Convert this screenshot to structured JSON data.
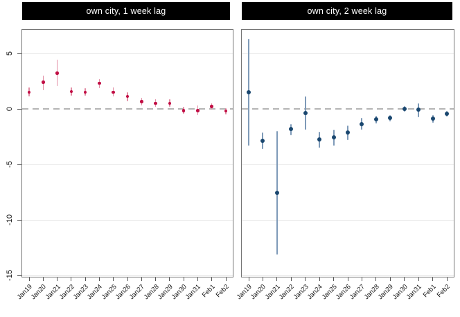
{
  "figure": {
    "background": "#ffffff",
    "panel_border_color": "#757575",
    "grid_color": "#e8e8e8",
    "zero_line_color": "#b4b4b4",
    "tick_color": "#555555",
    "tick_label_color": "#121212",
    "title_bar_bg": "#000000",
    "title_bar_fg": "#ffffff"
  },
  "chart_data": [
    {
      "type": "scatter",
      "title": "own city, 1 week lag",
      "xlabel": "",
      "ylabel": "",
      "x": [
        "Jan19",
        "Jan20",
        "Jan21",
        "Jan22",
        "Jan23",
        "Jan24",
        "Jan25",
        "Jan26",
        "Jan27",
        "Jan28",
        "Jan29",
        "Jan30",
        "Jan31",
        "Feb1",
        "Feb2"
      ],
      "yticks_labels": [
        "5",
        "0",
        "-5",
        "-10",
        "-15"
      ],
      "yticks_values": [
        5,
        0,
        -5,
        -10,
        -15
      ],
      "ylim": [
        -15.1,
        7.1
      ],
      "grid": "on",
      "legend": "none",
      "zero_reference_line": true,
      "marker_color": "#c10e44",
      "ci_color": "#e28da4",
      "series": [
        {
          "name": "coefficient estimate",
          "values": [
            1.5,
            2.4,
            3.2,
            1.55,
            1.5,
            2.3,
            1.5,
            1.1,
            0.65,
            0.5,
            0.5,
            -0.15,
            -0.15,
            0.2,
            -0.2
          ],
          "ci_high": [
            1.9,
            3.0,
            4.4,
            1.9,
            1.85,
            2.7,
            1.9,
            1.5,
            1.0,
            0.85,
            0.85,
            0.15,
            0.3,
            0.5,
            0.05
          ],
          "ci_low": [
            1.1,
            1.65,
            2.05,
            1.2,
            1.15,
            1.85,
            1.1,
            0.7,
            0.3,
            0.15,
            0.2,
            -0.45,
            -0.6,
            -0.1,
            -0.5
          ]
        }
      ]
    },
    {
      "type": "scatter",
      "title": "own city, 2 week lag",
      "xlabel": "",
      "ylabel": "",
      "x": [
        "Jan19",
        "Jan20",
        "Jan21",
        "Jan22",
        "Jan23",
        "Jan24",
        "Jan25",
        "Jan26",
        "Jan27",
        "Jan28",
        "Jan29",
        "Jan30",
        "Jan31",
        "Feb1",
        "Feb2"
      ],
      "yticks_labels": [],
      "yticks_values": [
        5,
        0,
        -5,
        -10,
        -15
      ],
      "ylim": [
        -15.1,
        7.1
      ],
      "grid": "on",
      "legend": "none",
      "zero_reference_line": true,
      "marker_color": "#1a476f",
      "ci_color": "#7e9ab8",
      "series": [
        {
          "name": "coefficient estimate",
          "values": [
            1.5,
            -2.9,
            -7.55,
            -1.8,
            -0.4,
            -2.75,
            -2.55,
            -2.15,
            -1.35,
            -0.95,
            -0.85,
            0.0,
            -0.1,
            -0.9,
            -0.45
          ],
          "ci_high": [
            6.3,
            -2.1,
            -2.0,
            -1.35,
            1.1,
            -2.05,
            -1.9,
            -1.5,
            -0.85,
            -0.65,
            -0.55,
            0.25,
            0.5,
            -0.6,
            -0.2
          ],
          "ci_low": [
            -3.3,
            -3.65,
            -13.1,
            -2.4,
            -1.9,
            -3.5,
            -3.3,
            -2.8,
            -1.9,
            -1.3,
            -1.15,
            -0.25,
            -0.75,
            -1.25,
            -0.7
          ]
        }
      ]
    }
  ]
}
